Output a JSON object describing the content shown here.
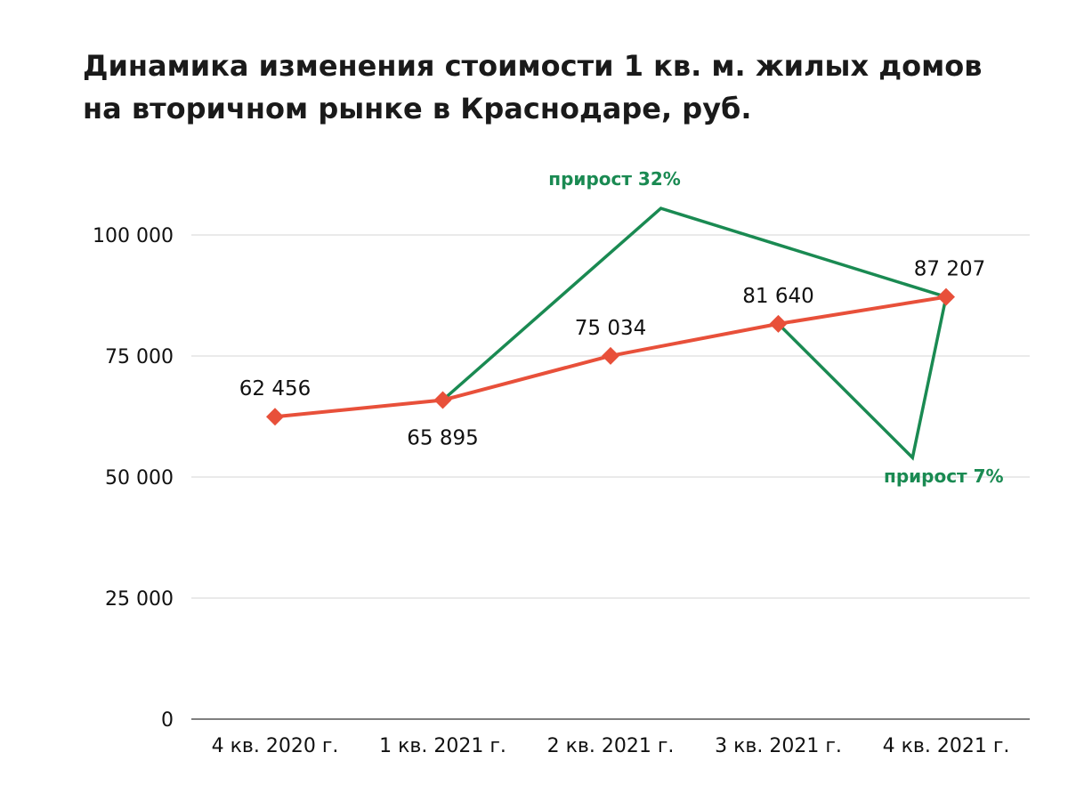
{
  "chart_data": {
    "type": "line",
    "title": [
      "Динамика изменения стоимости 1 кв. м. жилых домов",
      "на вторичном рынке  в Краснодаре, руб."
    ],
    "categories": [
      "4 кв. 2020 г.",
      "1 кв. 2021 г.",
      "2 кв. 2021 г.",
      "3 кв. 2021 г.",
      "4 кв. 2021 г."
    ],
    "series": [
      {
        "values": [
          62456,
          65895,
          75034,
          81640,
          87207
        ],
        "labels": [
          "62 456",
          "65 895",
          "75 034",
          "81 640",
          "87 207"
        ],
        "color": "#e8503a"
      }
    ],
    "ylim": [
      0,
      100000
    ],
    "yticks": [
      0,
      25000,
      50000,
      75000,
      100000
    ],
    "ytick_labels": [
      "0",
      "25 000",
      "50 000",
      "75 000",
      "100 000"
    ],
    "grid": true,
    "legend": "none",
    "annotations": [
      {
        "text": "прирост 32%",
        "from_category": 1,
        "to_category": 4,
        "color": "#1a8a52",
        "apex_category_position": 2.3,
        "apex_value": 105500
      },
      {
        "text": "прирост 7%",
        "from_category": 3,
        "to_category": 4,
        "color": "#1a8a52",
        "apex_category_position": 3.8,
        "apex_value": 54000
      }
    ]
  }
}
